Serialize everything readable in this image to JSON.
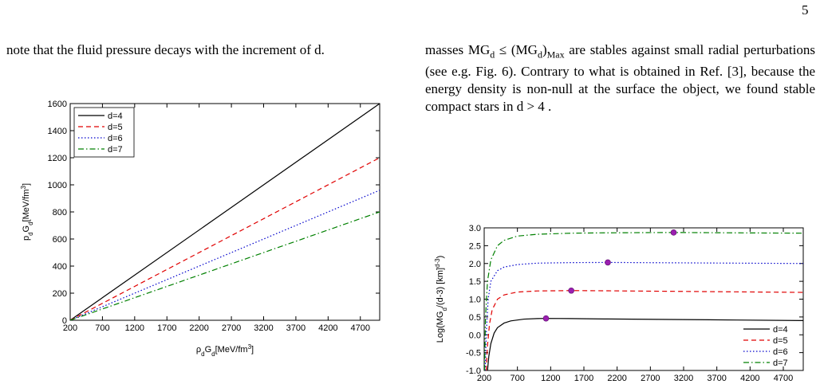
{
  "page_number": "5",
  "left_text": "note that the fluid pressure decays with the increment of d.",
  "right_text": "masses MG_{d} ≤ (MG_{d})_{Max} are stables against small radial perturbations (see e.g. Fig. 6). Contrary to what is obtained in Ref. [3], because the energy density is non-null at the surface the object, we found stable compact stars in d > 4 .",
  "chart_data": [
    {
      "type": "line",
      "xlabel": "ρ_{d}G_{d}[MeV/fm^{3}]",
      "ylabel": "p_{d}G_{d}[MeV/fm^{3}]",
      "xlim": [
        200,
        5000
      ],
      "ylim": [
        0,
        1600
      ],
      "xticks": [
        200,
        700,
        1200,
        1700,
        2200,
        2700,
        3200,
        3700,
        4200,
        4700
      ],
      "yticks": [
        0,
        200,
        400,
        600,
        800,
        1000,
        1200,
        1400,
        1600
      ],
      "grid": false,
      "legend": "top-left",
      "series": [
        {
          "name": "d=4",
          "color": "#000000",
          "dash": "solid",
          "x": [
            200,
            5000
          ],
          "values": [
            0,
            1600
          ]
        },
        {
          "name": "d=5",
          "color": "#e00000",
          "dash": "dashed",
          "x": [
            200,
            5000
          ],
          "values": [
            0,
            1200
          ]
        },
        {
          "name": "d=6",
          "color": "#0000cc",
          "dash": "dotted",
          "x": [
            200,
            5000
          ],
          "values": [
            0,
            960
          ]
        },
        {
          "name": "d=7",
          "color": "#008000",
          "dash": "dashdot",
          "x": [
            200,
            5000
          ],
          "values": [
            0,
            800
          ]
        }
      ]
    },
    {
      "type": "line",
      "ylabel": "Log(MG_{d}/(d-3) [km]^{d-3})",
      "xlim": [
        200,
        5000
      ],
      "ylim": [
        -1,
        3
      ],
      "xticks": [
        200,
        700,
        1200,
        1700,
        2200,
        2700,
        3200,
        3700,
        4200,
        4700
      ],
      "yticks": [
        {
          "value": -1,
          "label": "-1.0"
        },
        -0.5,
        {
          "value": 0,
          "label": "0.0"
        },
        0.5,
        {
          "value": 1,
          "label": "1.0"
        },
        1.5,
        {
          "value": 2,
          "label": "2.0"
        },
        2.5,
        {
          "value": 3,
          "label": "3.0"
        }
      ],
      "grid": false,
      "legend": "bottom-right",
      "series": [
        {
          "name": "d=4",
          "color": "#000000",
          "dash": "solid",
          "x": [
            250,
            270,
            300,
            350,
            400,
            500,
            600,
            800,
            1000,
            1130,
            1500,
            2000,
            3000,
            4000,
            5000
          ],
          "values": [
            -1,
            -0.6,
            -0.25,
            0.05,
            0.2,
            0.33,
            0.39,
            0.44,
            0.455,
            0.46,
            0.455,
            0.445,
            0.43,
            0.415,
            0.4
          ]
        },
        {
          "name": "d=5",
          "color": "#e00000",
          "dash": "dashed",
          "x": [
            230,
            250,
            280,
            320,
            400,
            500,
            700,
            1000,
            1510,
            2000,
            3000,
            4000,
            5000
          ],
          "values": [
            -1,
            -0.3,
            0.3,
            0.7,
            1.0,
            1.12,
            1.2,
            1.23,
            1.24,
            1.235,
            1.22,
            1.205,
            1.19
          ]
        },
        {
          "name": "d=6",
          "color": "#0000cc",
          "dash": "dotted",
          "x": [
            215,
            230,
            260,
            300,
            400,
            500,
            700,
            1000,
            1500,
            2060,
            3000,
            4000,
            5000
          ],
          "values": [
            -1,
            0,
            1.0,
            1.5,
            1.8,
            1.9,
            1.97,
            2.01,
            2.025,
            2.03,
            2.02,
            2.01,
            2.0
          ]
        },
        {
          "name": "d=7",
          "color": "#008000",
          "dash": "dashdot",
          "x": [
            205,
            220,
            250,
            300,
            400,
            500,
            700,
            1000,
            1500,
            2000,
            3050,
            4000,
            5000
          ],
          "values": [
            -1,
            0.5,
            1.5,
            2.1,
            2.5,
            2.65,
            2.77,
            2.82,
            2.85,
            2.86,
            2.87,
            2.86,
            2.85
          ]
        }
      ],
      "maxima": {
        "color": "#9b1fb0",
        "x": [
          1130,
          1510,
          2060,
          3050
        ],
        "y": [
          0.46,
          1.24,
          2.03,
          2.87
        ]
      }
    }
  ]
}
